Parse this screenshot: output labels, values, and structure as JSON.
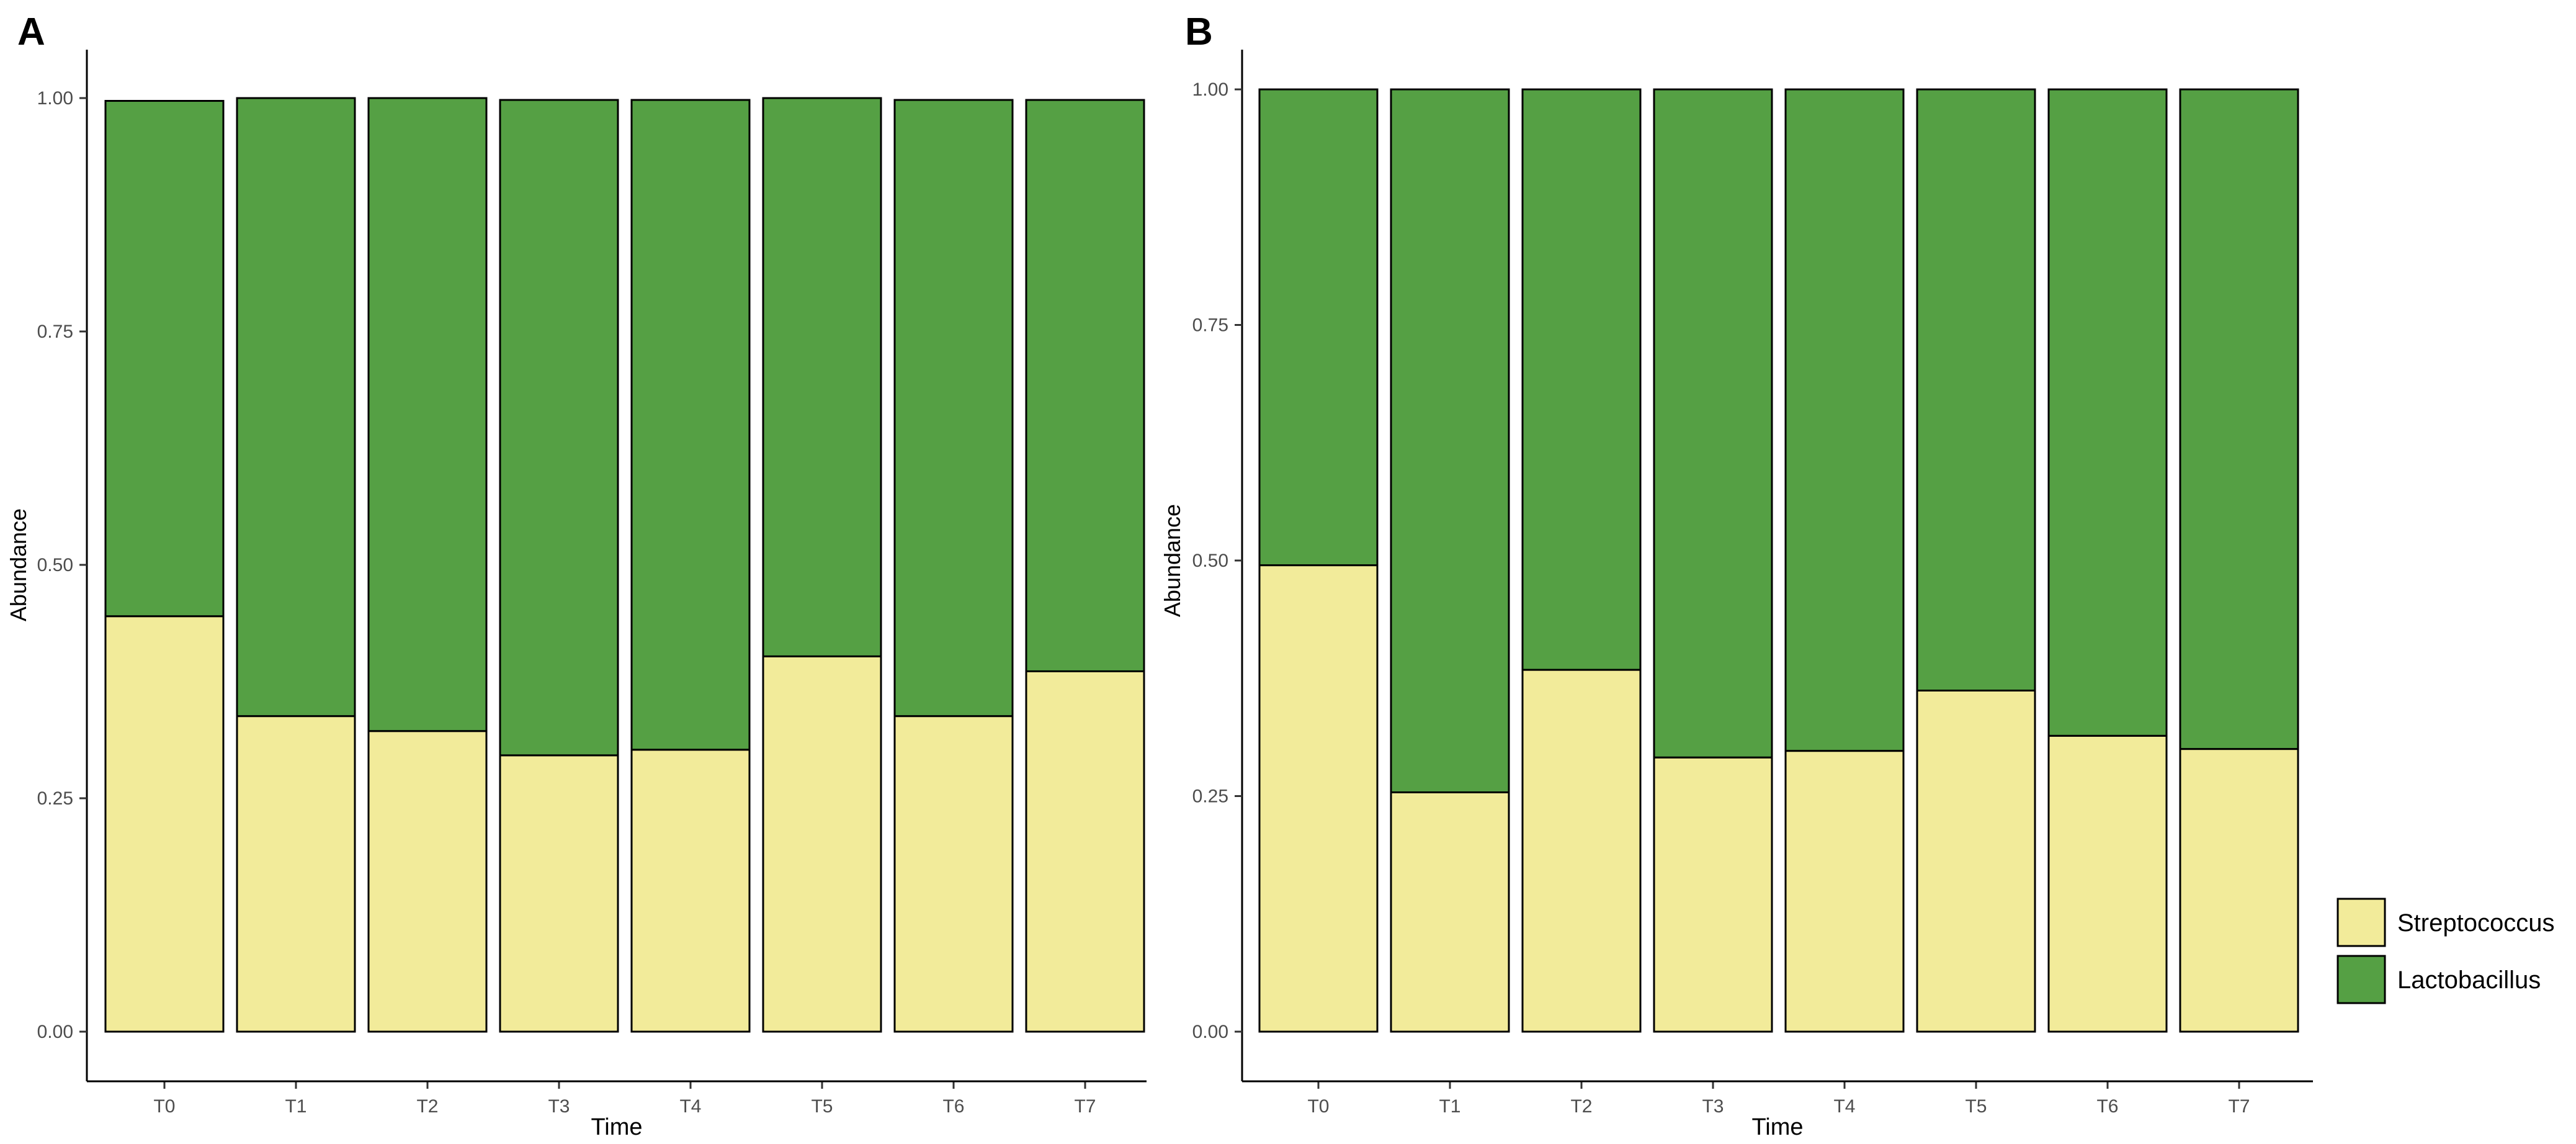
{
  "chart_data": [
    {
      "type": "bar",
      "stacked": true,
      "panel_label": "A",
      "title": "",
      "xlabel": "Time",
      "ylabel": "Abundance",
      "ylim": [
        0,
        1
      ],
      "yticks": [
        "0.00",
        "0.25",
        "0.50",
        "0.75",
        "1.00"
      ],
      "categories": [
        "T0",
        "T1",
        "T2",
        "T3",
        "T4",
        "T5",
        "T6",
        "T7"
      ],
      "series": [
        {
          "name": "Streptococcus",
          "color": "#f2eb9a",
          "values": [
            0.445,
            0.338,
            0.322,
            0.296,
            0.302,
            0.402,
            0.338,
            0.386
          ]
        },
        {
          "name": "Lactobacillus",
          "color": "#55a044",
          "values": [
            0.552,
            0.662,
            0.678,
            0.702,
            0.696,
            0.598,
            0.66,
            0.612
          ]
        }
      ],
      "grid": false
    },
    {
      "type": "bar",
      "stacked": true,
      "panel_label": "B",
      "title": "",
      "xlabel": "Time",
      "ylabel": "Abundance",
      "ylim": [
        0,
        1
      ],
      "yticks": [
        "0.00",
        "0.25",
        "0.50",
        "0.75",
        "1.00"
      ],
      "categories": [
        "T0",
        "T1",
        "T2",
        "T3",
        "T4",
        "T5",
        "T6",
        "T7"
      ],
      "series": [
        {
          "name": "Streptococcus",
          "color": "#f2eb9a",
          "values": [
            0.495,
            0.254,
            0.384,
            0.291,
            0.298,
            0.362,
            0.314,
            0.3
          ]
        },
        {
          "name": "Lactobacillus",
          "color": "#55a044",
          "values": [
            0.505,
            0.746,
            0.616,
            0.709,
            0.702,
            0.638,
            0.686,
            0.7
          ]
        }
      ],
      "grid": false
    }
  ],
  "legend": {
    "position": "right",
    "items": [
      {
        "label": "Streptococcus",
        "color": "#f2eb9a"
      },
      {
        "label": "Lactobacillus",
        "color": "#55a044"
      }
    ]
  }
}
